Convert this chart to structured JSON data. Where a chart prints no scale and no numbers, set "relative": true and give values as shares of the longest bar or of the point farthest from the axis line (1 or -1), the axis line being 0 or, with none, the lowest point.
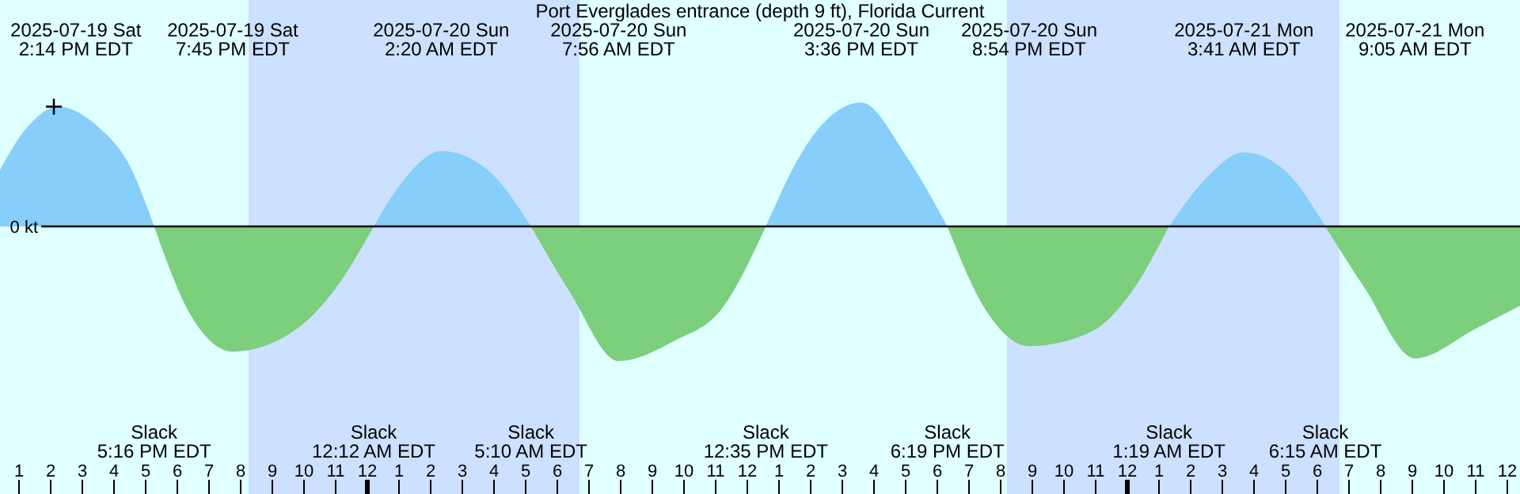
{
  "chart_data": {
    "type": "area",
    "title": "Port Everglades entrance (depth 9 ft), Florida Current",
    "relative": true,
    "tick_labels": "x",
    "xlim": [
      "2025-07-19T12:24",
      "2025-07-21T12:24"
    ],
    "xticks": [
      {
        "value": "2025-07-19T13:00",
        "label": "1"
      },
      {
        "value": "2025-07-19T14:00",
        "label": "2"
      },
      {
        "value": "2025-07-19T15:00",
        "label": "3"
      },
      {
        "value": "2025-07-19T16:00",
        "label": "4"
      },
      {
        "value": "2025-07-19T17:00",
        "label": "5"
      },
      {
        "value": "2025-07-19T18:00",
        "label": "6"
      },
      {
        "value": "2025-07-19T19:00",
        "label": "7"
      },
      {
        "value": "2025-07-19T20:00",
        "label": "8"
      },
      {
        "value": "2025-07-19T21:00",
        "label": "9"
      },
      {
        "value": "2025-07-19T22:00",
        "label": "10"
      },
      {
        "value": "2025-07-19T23:00",
        "label": "11"
      },
      {
        "value": "2025-07-20T00:00",
        "label": "12"
      },
      {
        "value": "2025-07-20T01:00",
        "label": "1"
      },
      {
        "value": "2025-07-20T02:00",
        "label": "2"
      },
      {
        "value": "2025-07-20T03:00",
        "label": "3"
      },
      {
        "value": "2025-07-20T04:00",
        "label": "4"
      },
      {
        "value": "2025-07-20T05:00",
        "label": "5"
      },
      {
        "value": "2025-07-20T06:00",
        "label": "6"
      },
      {
        "value": "2025-07-20T07:00",
        "label": "7"
      },
      {
        "value": "2025-07-20T08:00",
        "label": "8"
      },
      {
        "value": "2025-07-20T09:00",
        "label": "9"
      },
      {
        "value": "2025-07-20T10:00",
        "label": "10"
      },
      {
        "value": "2025-07-20T11:00",
        "label": "11"
      },
      {
        "value": "2025-07-20T12:00",
        "label": "12"
      },
      {
        "value": "2025-07-20T13:00",
        "label": "1"
      },
      {
        "value": "2025-07-20T14:00",
        "label": "2"
      },
      {
        "value": "2025-07-20T15:00",
        "label": "3"
      },
      {
        "value": "2025-07-20T16:00",
        "label": "4"
      },
      {
        "value": "2025-07-20T17:00",
        "label": "5"
      },
      {
        "value": "2025-07-20T18:00",
        "label": "6"
      },
      {
        "value": "2025-07-20T19:00",
        "label": "7"
      },
      {
        "value": "2025-07-20T20:00",
        "label": "8"
      },
      {
        "value": "2025-07-20T21:00",
        "label": "9"
      },
      {
        "value": "2025-07-20T22:00",
        "label": "10"
      },
      {
        "value": "2025-07-20T23:00",
        "label": "11"
      },
      {
        "value": "2025-07-21T00:00",
        "label": "12"
      },
      {
        "value": "2025-07-21T01:00",
        "label": "1"
      },
      {
        "value": "2025-07-21T02:00",
        "label": "2"
      },
      {
        "value": "2025-07-21T03:00",
        "label": "3"
      },
      {
        "value": "2025-07-21T04:00",
        "label": "4"
      },
      {
        "value": "2025-07-21T05:00",
        "label": "5"
      },
      {
        "value": "2025-07-21T06:00",
        "label": "6"
      },
      {
        "value": "2025-07-21T07:00",
        "label": "7"
      },
      {
        "value": "2025-07-21T08:00",
        "label": "8"
      },
      {
        "value": "2025-07-21T09:00",
        "label": "9"
      },
      {
        "value": "2025-07-21T10:00",
        "label": "10"
      },
      {
        "value": "2025-07-21T11:00",
        "label": "11"
      },
      {
        "value": "2025-07-21T12:00",
        "label": "12"
      }
    ],
    "x": [
      "2025-07-19T12:24",
      "2025-07-19T13:12",
      "2025-07-19T14:14",
      "2025-07-19T15:30",
      "2025-07-19T16:30",
      "2025-07-19T17:16",
      "2025-07-19T18:24",
      "2025-07-19T19:45",
      "2025-07-19T21:36",
      "2025-07-19T23:00",
      "2025-07-20T00:12",
      "2025-07-20T01:12",
      "2025-07-20T02:20",
      "2025-07-20T03:48",
      "2025-07-20T05:10",
      "2025-07-20T06:24",
      "2025-07-20T07:56",
      "2025-07-20T09:42",
      "2025-07-20T11:12",
      "2025-07-20T12:35",
      "2025-07-20T14:00",
      "2025-07-20T15:36",
      "2025-07-20T17:00",
      "2025-07-20T18:19",
      "2025-07-20T19:30",
      "2025-07-20T20:54",
      "2025-07-20T22:48",
      "2025-07-21T00:00",
      "2025-07-21T01:19",
      "2025-07-21T02:30",
      "2025-07-21T03:41",
      "2025-07-21T05:00",
      "2025-07-21T06:15",
      "2025-07-21T07:30",
      "2025-07-21T09:05",
      "2025-07-21T11:00",
      "2025-07-21T12:24"
    ],
    "series": [
      {
        "color": "#87cefa",
        "values": [
          0.42,
          0.72,
          0.89,
          0.74,
          0.45,
          0,
          null,
          null,
          null,
          null,
          0,
          0.36,
          0.56,
          0.42,
          0,
          null,
          null,
          null,
          null,
          0,
          0.65,
          0.92,
          0.53,
          0,
          null,
          null,
          null,
          null,
          0,
          0.36,
          0.55,
          0.41,
          0,
          null,
          null,
          null,
          null
        ]
      },
      {
        "color": "#7ccf7c",
        "values": [
          null,
          null,
          null,
          null,
          null,
          0,
          -0.65,
          -0.93,
          -0.79,
          -0.46,
          0,
          null,
          null,
          null,
          0,
          -0.49,
          -1,
          -0.85,
          -0.61,
          0,
          null,
          null,
          null,
          0,
          -0.61,
          -0.89,
          -0.79,
          -0.53,
          0,
          null,
          null,
          null,
          0,
          -0.46,
          -0.98,
          -0.76,
          -0.59
        ]
      },
      {
        "type": "scatter",
        "marker": "cross",
        "color": "#000000",
        "x": [
          "2025-07-19T14:06"
        ],
        "values": [
          0.89
        ]
      }
    ],
    "ref_lines": [
      {
        "axis": "y",
        "value": 0,
        "label": "0 kt",
        "color": "#000000"
      }
    ],
    "bands": [
      {
        "axis": "x",
        "from": "2025-07-19T20:15",
        "to": "2025-07-20T06:42",
        "color": "#cce0ff"
      },
      {
        "axis": "x",
        "from": "2025-07-20T20:12",
        "to": "2025-07-21T06:42",
        "color": "#cce0ff"
      }
    ],
    "annotations": [
      "2025-07-19 Sat\n2:14 PM EDT",
      "2025-07-19 Sat\n7:45 PM EDT",
      "2025-07-20 Sun\n2:20 AM EDT",
      "2025-07-20 Sun\n7:56 AM EDT",
      "2025-07-20 Sun\n3:36 PM EDT",
      "2025-07-20 Sun\n8:54 PM EDT",
      "2025-07-21 Mon\n3:41 AM EDT",
      "2025-07-21 Mon\n9:05 AM EDT",
      "Slack\n5:16 PM EDT",
      "Slack\n12:12 AM EDT",
      "Slack\n5:10 AM EDT",
      "Slack\n12:35 PM EDT",
      "Slack\n6:19 PM EDT",
      "Slack\n1:19 AM EDT",
      "Slack\n6:15 AM EDT"
    ]
  }
}
